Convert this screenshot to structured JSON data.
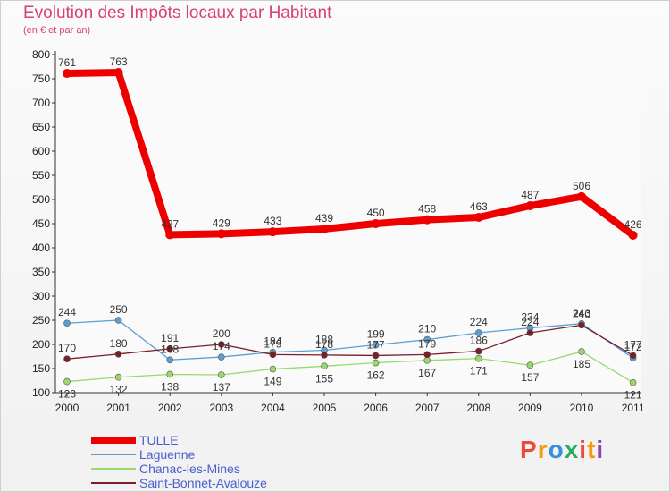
{
  "header": {
    "title": "Evolution des Impôts locaux par Habitant",
    "subtitle": "(en € et par an)"
  },
  "logo": {
    "text": "Proxiti",
    "colors": [
      "#e84c3d",
      "#f39c12",
      "#3b8fd9",
      "#27ae60",
      "#e84c3d",
      "#f39c12",
      "#8e44ad"
    ]
  },
  "chart_data": {
    "type": "line",
    "title": "Evolution des Impôts locaux par Habitant",
    "subtitle": "(en € et par an)",
    "xlabel": "",
    "ylabel": "",
    "x": [
      "2000",
      "2001",
      "2002",
      "2003",
      "2004",
      "2005",
      "2006",
      "2007",
      "2008",
      "2009",
      "2010",
      "2011"
    ],
    "ylim": [
      100,
      800
    ],
    "yticks": [
      100,
      150,
      200,
      250,
      300,
      350,
      400,
      450,
      500,
      550,
      600,
      650,
      700,
      750,
      800
    ],
    "grid": false,
    "legend": "bottom-left",
    "series": [
      {
        "name": "TULLE",
        "color": "#ee0000",
        "values": [
          761,
          763,
          427,
          429,
          433,
          439,
          450,
          458,
          463,
          487,
          506,
          426
        ]
      },
      {
        "name": "Laguenne",
        "color": "#5a9fd0",
        "values": [
          244,
          250,
          168,
          174,
          184,
          188,
          199,
          210,
          224,
          234,
          243,
          172
        ]
      },
      {
        "name": "Chanac-les-Mines",
        "color": "#9ad86b",
        "values": [
          123,
          132,
          138,
          137,
          149,
          155,
          162,
          167,
          171,
          157,
          185,
          121
        ]
      },
      {
        "name": "Saint-Bonnet-Avalouze",
        "color": "#7a1f2a",
        "values": [
          170,
          180,
          191,
          200,
          179,
          178,
          177,
          179,
          186,
          224,
          240,
          177
        ]
      }
    ]
  }
}
